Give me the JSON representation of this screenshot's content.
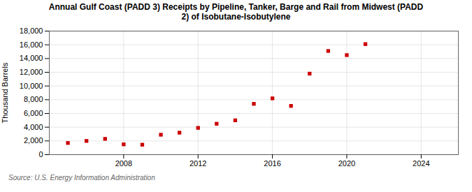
{
  "chart_data": {
    "type": "scatter",
    "title": "Annual Gulf Coast (PADD 3) Receipts by Pipeline, Tanker, Barge and Rail from Midwest (PADD\n2) of Isobutane-Isobutylene",
    "ylabel": "Thousand Barrels",
    "source": "Source: U.S. Energy Information Administration",
    "x": [
      2005,
      2006,
      2007,
      2008,
      2009,
      2010,
      2011,
      2012,
      2013,
      2014,
      2015,
      2016,
      2017,
      2018,
      2019,
      2020,
      2021,
      2022
    ],
    "values": [
      1700,
      2000,
      2300,
      1500,
      1450,
      2900,
      3200,
      3900,
      4500,
      5000,
      7400,
      8200,
      7100,
      11800,
      15100,
      14500,
      16100,
      null
    ],
    "color": "#cc0000",
    "marker": "square",
    "xlim": [
      2004,
      2026
    ],
    "ylim": [
      0,
      18000
    ],
    "xticks": [
      2008,
      2012,
      2016,
      2020,
      2024
    ],
    "yticks": [
      0,
      {
        "value": 2000,
        "label": "2,000"
      },
      {
        "value": 4000,
        "label": "4,000"
      },
      {
        "value": 6000,
        "label": "6,000"
      },
      {
        "value": 8000,
        "label": "8,000"
      },
      {
        "value": 10000,
        "label": "10,000"
      },
      {
        "value": 12000,
        "label": "12,000"
      },
      {
        "value": 14000,
        "label": "14,000"
      },
      {
        "value": 16000,
        "label": "16,000"
      },
      {
        "value": 18000,
        "label": "18,000"
      }
    ],
    "grid": true
  }
}
